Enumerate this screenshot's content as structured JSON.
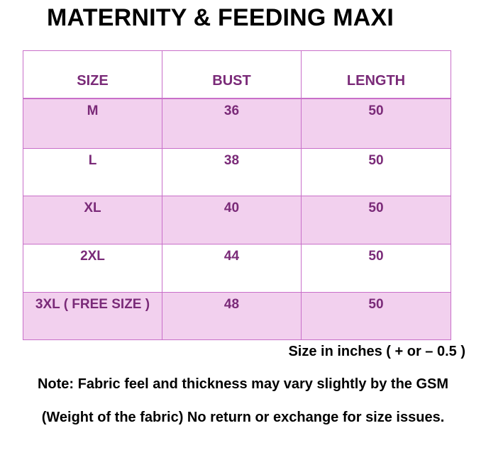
{
  "title": "MATERNITY & FEEDING MAXI",
  "table": {
    "headers": [
      "SIZE",
      "BUST",
      "LENGTH"
    ],
    "rows": [
      {
        "size": "M",
        "bust": "36",
        "length": "50"
      },
      {
        "size": "L",
        "bust": "38",
        "length": "50"
      },
      {
        "size": "XL",
        "bust": "40",
        "length": "50"
      },
      {
        "size": "2XL",
        "bust": "44",
        "length": "50"
      },
      {
        "size": "3XL ( FREE SIZE )",
        "bust": "48",
        "length": "50"
      }
    ]
  },
  "size_note": "Size in inches ( + or  – 0.5 )",
  "notes": [
    "Note: Fabric feel and thickness may vary slightly by the GSM",
    "(Weight of the fabric) No return or exchange for size issues."
  ],
  "colors": {
    "text_accent": "#7a2a78",
    "border": "#c86fc9",
    "row_shade": "#f2d0ee"
  }
}
